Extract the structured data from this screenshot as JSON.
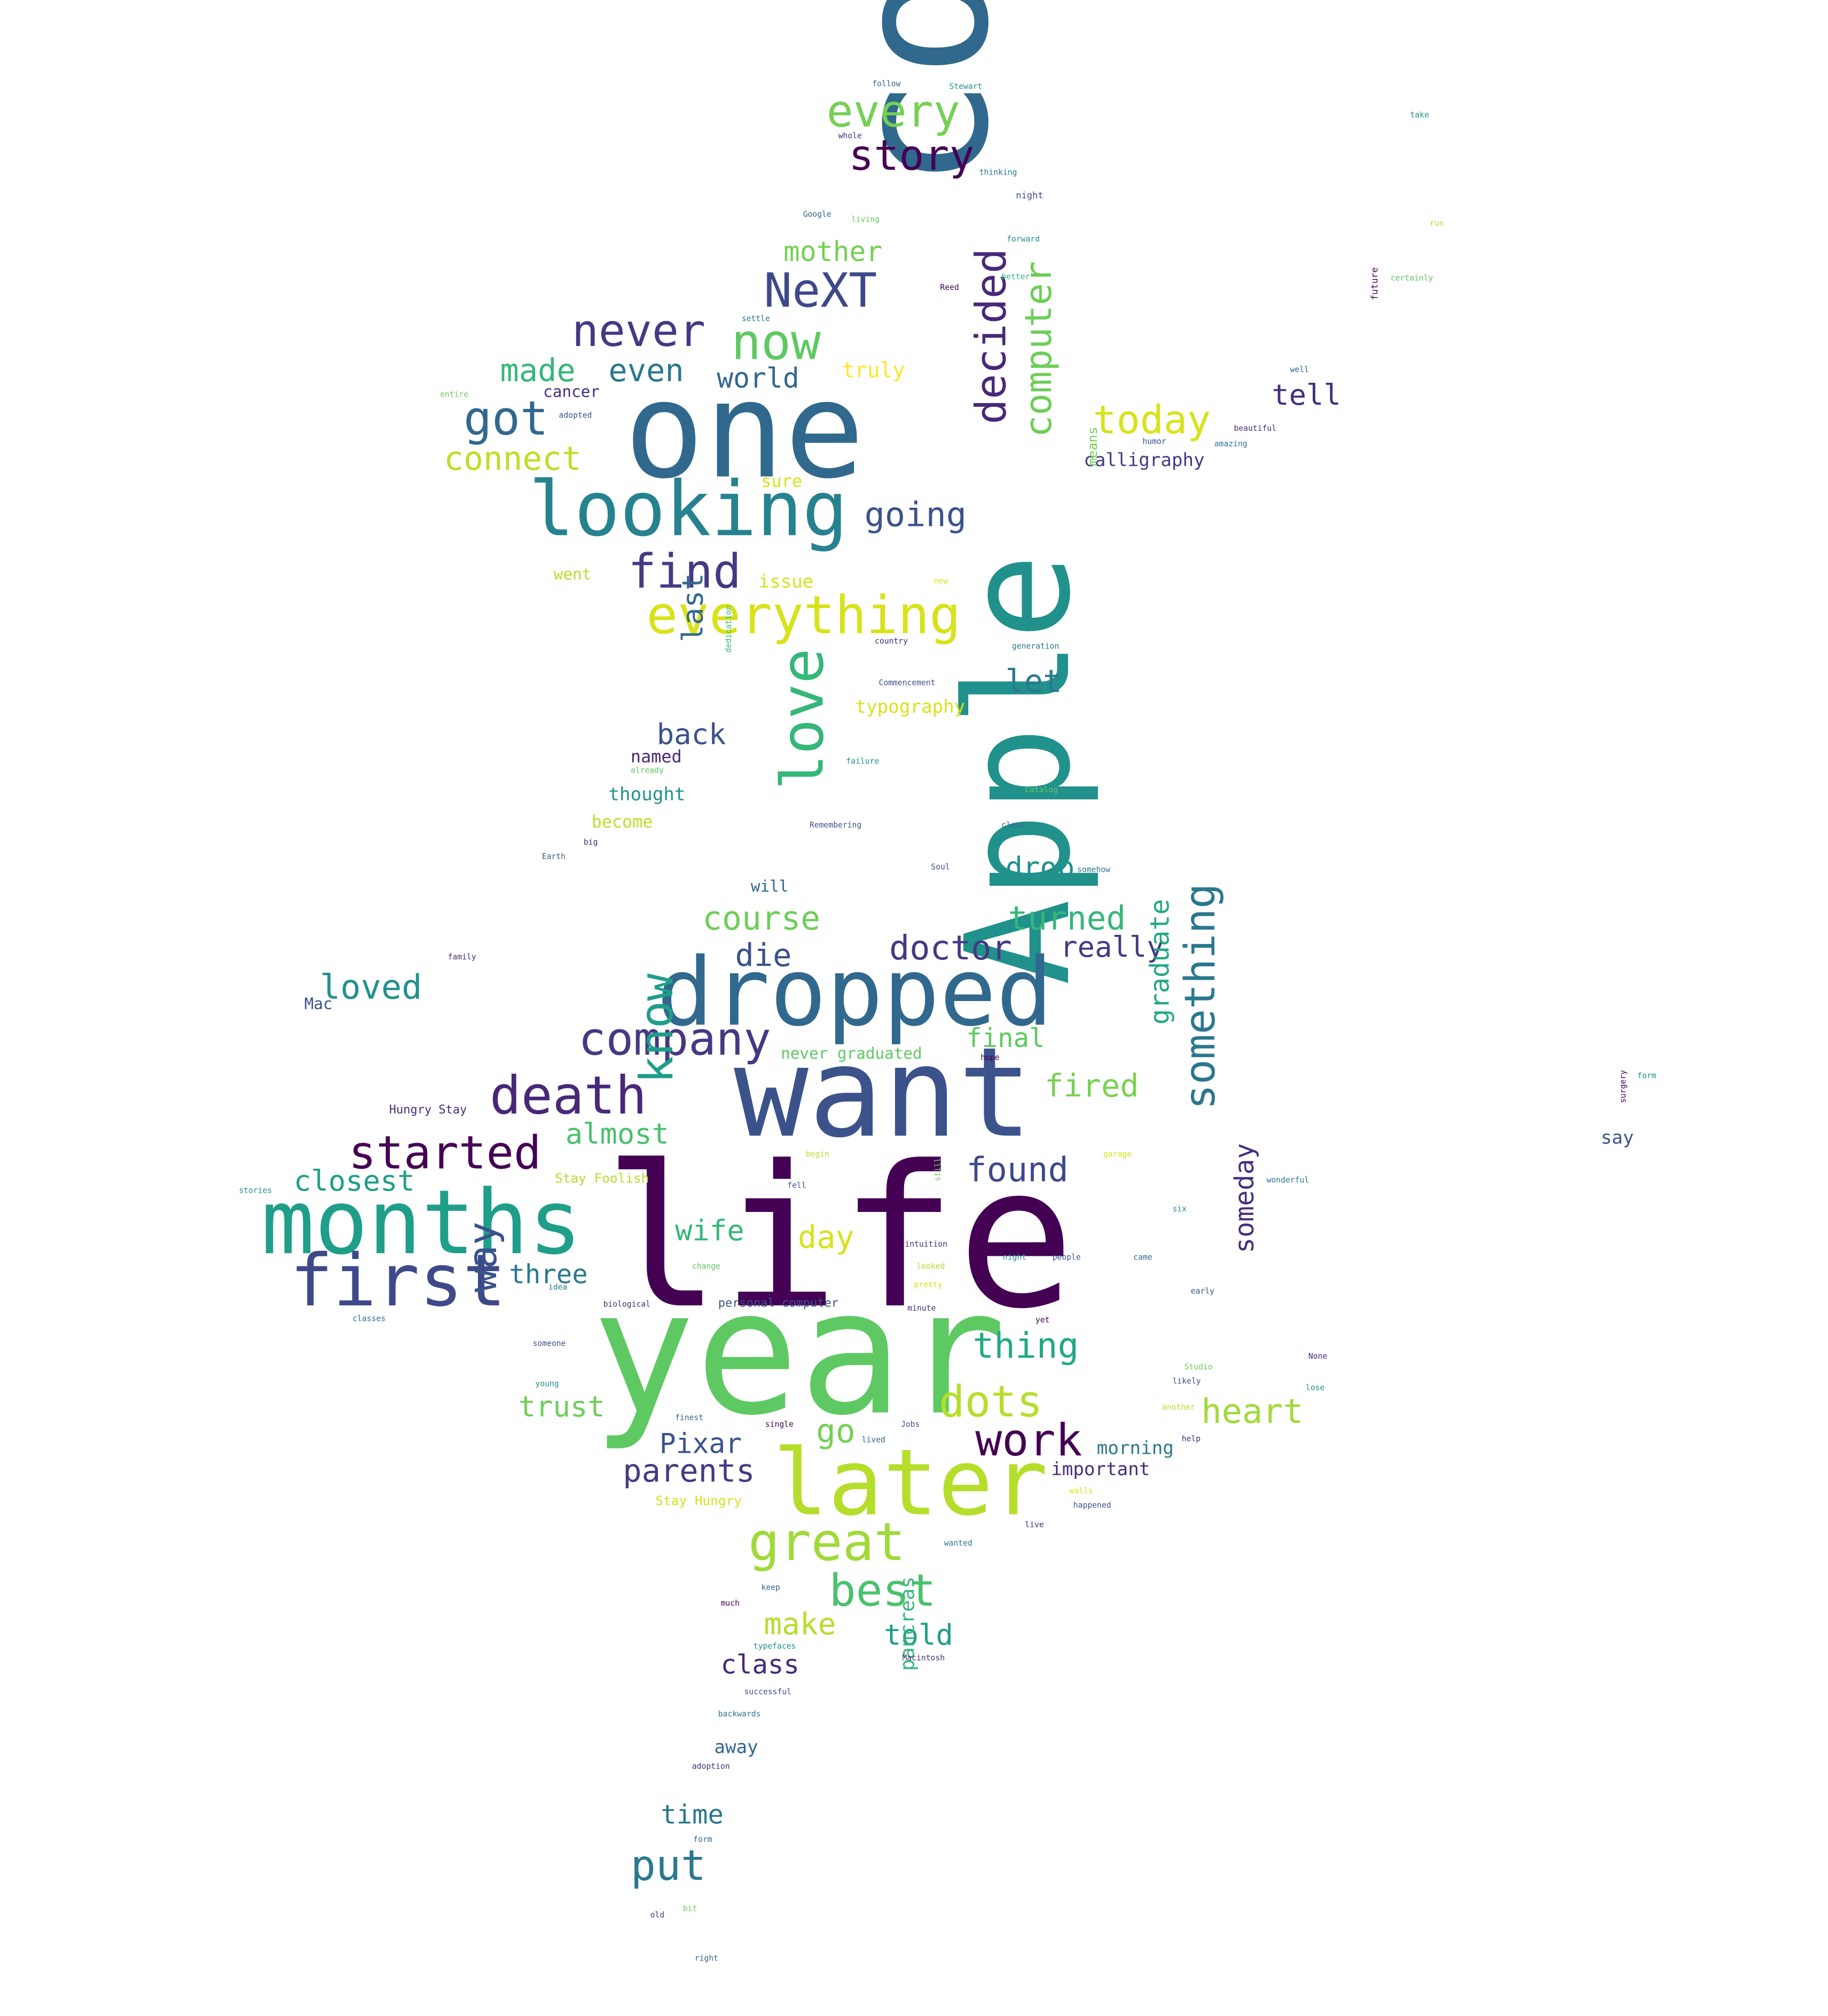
{
  "words": [
    {
      "text": "life",
      "color": "#440154"
    },
    {
      "text": "college",
      "color": "#31688e"
    },
    {
      "text": "year",
      "color": "#5ec962"
    },
    {
      "text": "one",
      "color": "#31688e"
    },
    {
      "text": "Apple",
      "color": "#21918c"
    },
    {
      "text": "want",
      "color": "#3b528b"
    },
    {
      "text": "dropped",
      "color": "#31688e"
    },
    {
      "text": "later",
      "color": "#b5de2b"
    },
    {
      "text": "months",
      "color": "#1f9e89"
    },
    {
      "text": "looking",
      "color": "#26828e"
    },
    {
      "text": "first",
      "color": "#3e4989"
    },
    {
      "text": "everything",
      "color": "#d8e219"
    },
    {
      "text": "love",
      "color": "#35b779"
    },
    {
      "text": "company",
      "color": "#443983"
    },
    {
      "text": "death",
      "color": "#482878"
    },
    {
      "text": "great",
      "color": "#a0da39"
    },
    {
      "text": "started",
      "color": "#440154"
    },
    {
      "text": "know",
      "color": "#1f9e89"
    },
    {
      "text": "NeXT",
      "color": "#3e4989"
    },
    {
      "text": "now",
      "color": "#5ec962"
    },
    {
      "text": "never",
      "color": "#443983"
    },
    {
      "text": "decided",
      "color": "#482878"
    },
    {
      "text": "computer",
      "color": "#6ece58"
    },
    {
      "text": "story",
      "color": "#440154"
    },
    {
      "text": "every",
      "color": "#75d054"
    },
    {
      "text": "got",
      "color": "#31688e"
    },
    {
      "text": "today",
      "color": "#d8e219"
    },
    {
      "text": "find",
      "color": "#443983"
    },
    {
      "text": "something",
      "color": "#2a788e"
    },
    {
      "text": "best",
      "color": "#4ac16d"
    },
    {
      "text": "dots",
      "color": "#b5de2b"
    },
    {
      "text": "work",
      "color": "#440154"
    },
    {
      "text": "doctor",
      "color": "#443983"
    },
    {
      "text": "way",
      "color": "#3b528b"
    },
    {
      "text": "closest",
      "color": "#1f9e89"
    },
    {
      "text": "loved",
      "color": "#21918c"
    },
    {
      "text": "heart",
      "color": "#a0da39"
    },
    {
      "text": "thing",
      "color": "#22a884"
    },
    {
      "text": "day",
      "color": "#d8e219"
    },
    {
      "text": "found",
      "color": "#3e4989"
    },
    {
      "text": "course",
      "color": "#6ece58"
    },
    {
      "text": "turned",
      "color": "#35b779"
    },
    {
      "text": "die",
      "color": "#3b528b"
    },
    {
      "text": "really",
      "color": "#443983"
    },
    {
      "text": "connect",
      "color": "#bddf26"
    },
    {
      "text": "made",
      "color": "#35b779"
    },
    {
      "text": "even",
      "color": "#2a788e"
    },
    {
      "text": "world",
      "color": "#31688e"
    },
    {
      "text": "going",
      "color": "#3b528b"
    },
    {
      "text": "mother",
      "color": "#75d054"
    },
    {
      "text": "tell",
      "color": "#472d7b"
    },
    {
      "text": "let",
      "color": "#2a788e"
    },
    {
      "text": "back",
      "color": "#3b528b"
    },
    {
      "text": "last",
      "color": "#31688e"
    },
    {
      "text": "Pixar",
      "color": "#3b528b"
    },
    {
      "text": "parents",
      "color": "#443983"
    },
    {
      "text": "go",
      "color": "#75d054"
    },
    {
      "text": "trust",
      "color": "#6ece58"
    },
    {
      "text": "three",
      "color": "#2a788e"
    },
    {
      "text": "almost",
      "color": "#4ac16d"
    },
    {
      "text": "wife",
      "color": "#35b779"
    },
    {
      "text": "fired",
      "color": "#7ad151"
    },
    {
      "text": "final",
      "color": "#5ec962"
    },
    {
      "text": "drop",
      "color": "#21918c"
    },
    {
      "text": "graduate",
      "color": "#22a884"
    },
    {
      "text": "someday",
      "color": "#472d7b"
    },
    {
      "text": "make",
      "color": "#b5de2b"
    },
    {
      "text": "told",
      "color": "#1f9e89"
    },
    {
      "text": "class",
      "color": "#482878"
    },
    {
      "text": "put",
      "color": "#2a788e"
    },
    {
      "text": "time",
      "color": "#2a788e"
    },
    {
      "text": "away",
      "color": "#31688e"
    },
    {
      "text": "pancreas",
      "color": "#35b779"
    },
    {
      "text": "morning",
      "color": "#2a788e"
    },
    {
      "text": "important",
      "color": "#472d7b"
    },
    {
      "text": "calligraphy",
      "color": "#443983"
    },
    {
      "text": "typography",
      "color": "#d8e219"
    },
    {
      "text": "thought",
      "color": "#21918c"
    },
    {
      "text": "become",
      "color": "#bddf26"
    },
    {
      "text": "named",
      "color": "#482878"
    },
    {
      "text": "will",
      "color": "#31688e"
    },
    {
      "text": "truly",
      "color": "#fde725"
    },
    {
      "text": "issue",
      "color": "#d8e219"
    },
    {
      "text": "cancer",
      "color": "#472d7b"
    },
    {
      "text": "sure",
      "color": "#d8e219"
    },
    {
      "text": "means",
      "color": "#6ece58"
    },
    {
      "text": "went",
      "color": "#b5de2b"
    },
    {
      "text": "Mac",
      "color": "#3b528b"
    },
    {
      "text": "Hungry Stay",
      "color": "#472d7b"
    },
    {
      "text": "Stay Foolish",
      "color": "#b5de2b"
    },
    {
      "text": "never graduated",
      "color": "#5ec962"
    },
    {
      "text": "personal computer",
      "color": "#3b528b"
    },
    {
      "text": "Stay Hungry",
      "color": "#d8e219"
    },
    {
      "text": "say",
      "color": "#3b528b"
    },
    {
      "text": "follow",
      "color": "#31688e"
    },
    {
      "text": "Stewart",
      "color": "#21918c"
    },
    {
      "text": "whole",
      "color": "#472d7b"
    },
    {
      "text": "thinking",
      "color": "#2a788e"
    },
    {
      "text": "night",
      "color": "#3b528b"
    },
    {
      "text": "Google",
      "color": "#31688e"
    },
    {
      "text": "living",
      "color": "#5ec962"
    },
    {
      "text": "forward",
      "color": "#21918c"
    },
    {
      "text": "better",
      "color": "#35b779"
    },
    {
      "text": "Reed",
      "color": "#440154"
    },
    {
      "text": "settle",
      "color": "#2a788e"
    },
    {
      "text": "entire",
      "color": "#6ece58"
    },
    {
      "text": "adopted",
      "color": "#3b528b"
    },
    {
      "text": "beautiful",
      "color": "#472d7b"
    },
    {
      "text": "amazing",
      "color": "#2a788e"
    },
    {
      "text": "humor",
      "color": "#3b528b"
    },
    {
      "text": "future",
      "color": "#440154"
    },
    {
      "text": "well",
      "color": "#31688e"
    },
    {
      "text": "certainly",
      "color": "#5ec962"
    },
    {
      "text": "run",
      "color": "#b5de2b"
    },
    {
      "text": "take",
      "color": "#21918c"
    },
    {
      "text": "new",
      "color": "#d8e219"
    },
    {
      "text": "country",
      "color": "#472d7b"
    },
    {
      "text": "generation",
      "color": "#2a788e"
    },
    {
      "text": "Commencement",
      "color": "#3b528b"
    },
    {
      "text": "dedication",
      "color": "#35b779"
    },
    {
      "text": "failure",
      "color": "#21918c"
    },
    {
      "text": "Catalog",
      "color": "#5ec962"
    },
    {
      "text": "clear",
      "color": "#31688e"
    },
    {
      "text": "Remembering",
      "color": "#3b528b"
    },
    {
      "text": "big",
      "color": "#472d7b"
    },
    {
      "text": "Earth",
      "color": "#31688e"
    },
    {
      "text": "Soul",
      "color": "#3b528b"
    },
    {
      "text": "somehow",
      "color": "#2a788e"
    },
    {
      "text": "family",
      "color": "#472d7b"
    },
    {
      "text": "hope",
      "color": "#440154"
    },
    {
      "text": "begin",
      "color": "#b5de2b"
    },
    {
      "text": "garage",
      "color": "#d8e219"
    },
    {
      "text": "wonderful",
      "color": "#2a788e"
    },
    {
      "text": "fell",
      "color": "#3b528b"
    },
    {
      "text": "still",
      "color": "#6ece58"
    },
    {
      "text": "six",
      "color": "#21918c"
    },
    {
      "text": "change",
      "color": "#5ec962"
    },
    {
      "text": "looked",
      "color": "#b5de2b"
    },
    {
      "text": "intuition",
      "color": "#472d7b"
    },
    {
      "text": "night",
      "color": "#21918c"
    },
    {
      "text": "people",
      "color": "#3b528b"
    },
    {
      "text": "came",
      "color": "#31688e"
    },
    {
      "text": "idea",
      "color": "#2a788e"
    },
    {
      "text": "biological",
      "color": "#472d7b"
    },
    {
      "text": "pretty",
      "color": "#d8e219"
    },
    {
      "text": "early",
      "color": "#3b528b"
    },
    {
      "text": "minute",
      "color": "#472d7b"
    },
    {
      "text": "yet",
      "color": "#440154"
    },
    {
      "text": "classes",
      "color": "#31688e"
    },
    {
      "text": "someone",
      "color": "#3b528b"
    },
    {
      "text": "young",
      "color": "#21918c"
    },
    {
      "text": "Studio",
      "color": "#6ece58"
    },
    {
      "text": "likely",
      "color": "#3b528b"
    },
    {
      "text": "None",
      "color": "#472d7b"
    },
    {
      "text": "lose",
      "color": "#21918c"
    },
    {
      "text": "finest",
      "color": "#31688e"
    },
    {
      "text": "single",
      "color": "#440154"
    },
    {
      "text": "Jobs",
      "color": "#3b528b"
    },
    {
      "text": "lived",
      "color": "#31688e"
    },
    {
      "text": "another",
      "color": "#b5de2b"
    },
    {
      "text": "help",
      "color": "#472d7b"
    },
    {
      "text": "walls",
      "color": "#d8e219"
    },
    {
      "text": "happened",
      "color": "#3b528b"
    },
    {
      "text": "wanted",
      "color": "#2a788e"
    },
    {
      "text": "live",
      "color": "#472d7b"
    },
    {
      "text": "keep",
      "color": "#31688e"
    },
    {
      "text": "much",
      "color": "#440154"
    },
    {
      "text": "typefaces",
      "color": "#21918c"
    },
    {
      "text": "Macintosh",
      "color": "#472d7b"
    },
    {
      "text": "successful",
      "color": "#3b528b"
    },
    {
      "text": "backwards",
      "color": "#2a788e"
    },
    {
      "text": "adoption",
      "color": "#472d7b"
    },
    {
      "text": "form",
      "color": "#31688e"
    },
    {
      "text": "bit",
      "color": "#6ece58"
    },
    {
      "text": "old",
      "color": "#472d7b"
    },
    {
      "text": "right",
      "color": "#31688e"
    },
    {
      "text": "form",
      "color": "#21918c"
    },
    {
      "text": "surgery",
      "color": "#440154"
    },
    {
      "text": "stories",
      "color": "#21918c"
    },
    {
      "text": "already",
      "color": "#5ec962"
    },
    {
      "text": "see",
      "color": "#472d7b"
    },
    {
      "text": "true",
      "color": "#3b528b"
    }
  ]
}
